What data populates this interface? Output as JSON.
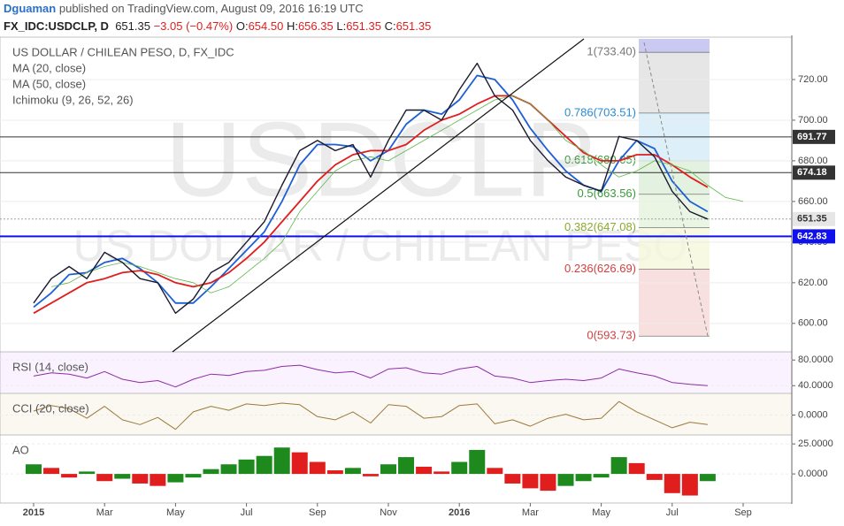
{
  "header": {
    "user": "Dguaman",
    "published": "published on TradingView.com, August 09, 2016 16:19 UTC",
    "symbol": "FX_IDC:USDCLP, D",
    "price": "651.35",
    "change": "−3.05 (−0.47%)",
    "ohlc": [
      {
        "label": "O:",
        "value": "654.50"
      },
      {
        "label": "H:",
        "value": "656.35"
      },
      {
        "label": "L:",
        "value": "651.35"
      },
      {
        "label": "C:",
        "value": "651.35"
      }
    ]
  },
  "chart_data": [
    {
      "type": "line",
      "title": "US DOLLAR / CHILEAN PESO, D, FX_IDC",
      "watermark": "USDCLP",
      "watermark_sub": "US DOLLAR / CHILEAN PESO",
      "categories": [
        "2015",
        null,
        null,
        null,
        "Mar",
        null,
        null,
        null,
        "May",
        null,
        null,
        null,
        "Jul",
        null,
        null,
        null,
        "Sep",
        null,
        null,
        null,
        "Nov",
        null,
        null,
        null,
        "2016",
        null,
        null,
        null,
        "Mar",
        null,
        null,
        null,
        "May",
        null,
        null,
        null,
        "Jul",
        null,
        null,
        null,
        "Sep",
        null
      ],
      "color": "#1a1a2e",
      "values": [
        610,
        622,
        628,
        622,
        635,
        630,
        622,
        620,
        605,
        612,
        625,
        630,
        640,
        650,
        668,
        685,
        690,
        685,
        688,
        672,
        690,
        705,
        705,
        700,
        715,
        728,
        712,
        705,
        690,
        680,
        672,
        668,
        665,
        692,
        690,
        682,
        665,
        655,
        651.35,
        null,
        null,
        null
      ],
      "series": [
        {
          "name": "MA (20, close)",
          "color": "#1c5fd6",
          "values": [
            608,
            615,
            624,
            625,
            630,
            632,
            627,
            620,
            610,
            610,
            618,
            627,
            636,
            645,
            660,
            678,
            688,
            688,
            687,
            680,
            685,
            698,
            705,
            703,
            710,
            722,
            720,
            710,
            696,
            685,
            675,
            668,
            665,
            680,
            690,
            686,
            670,
            660,
            655,
            null,
            null,
            null
          ]
        },
        {
          "name": "MA (50, close)",
          "color": "#e01e1e",
          "values": [
            605,
            610,
            615,
            620,
            622,
            625,
            626,
            624,
            620,
            618,
            620,
            625,
            632,
            640,
            650,
            660,
            670,
            678,
            683,
            685,
            685,
            688,
            695,
            700,
            703,
            708,
            712,
            712,
            708,
            700,
            692,
            684,
            680,
            680,
            683,
            683,
            678,
            672,
            667,
            null,
            null,
            null
          ]
        },
        {
          "name": "Ichimoku (9, 26, 52, 26)",
          "color": "#5fb84a",
          "values": [
            null,
            618,
            620,
            625,
            628,
            630,
            628,
            625,
            622,
            620,
            615,
            618,
            625,
            632,
            640,
            655,
            665,
            675,
            680,
            682,
            680,
            685,
            690,
            695,
            700,
            705,
            710,
            712,
            708,
            700,
            690,
            685,
            678,
            672,
            675,
            680,
            678,
            675,
            668,
            662,
            660,
            null
          ]
        }
      ],
      "ylim": [
        586,
        740
      ],
      "yticks": [
        {
          "value": 600,
          "label": "600.00"
        },
        {
          "value": 620,
          "label": "620.00"
        },
        {
          "value": 640,
          "label": "640.00"
        },
        {
          "value": 660,
          "label": "660.00"
        },
        {
          "value": 680,
          "label": "680.00"
        },
        {
          "value": 700,
          "label": "700.00"
        },
        {
          "value": 720,
          "label": "720.00"
        }
      ],
      "hlines": [
        {
          "value": 691.77,
          "color": "#333333"
        },
        {
          "value": 674.18,
          "color": "#333333"
        },
        {
          "value": 651.35,
          "color": "#9e9e9e"
        },
        {
          "value": 642.83,
          "color": "#1010ee"
        }
      ],
      "fib": [
        {
          "value": 733.4,
          "label": "1(733.40)",
          "color": "#e0e0e0"
        },
        {
          "value": 703.51,
          "label": "0.786(703.51)",
          "color": "#d4ebf7"
        },
        {
          "value": 680.05,
          "label": "0.618(680.05)",
          "color": "#dcefd8"
        },
        {
          "value": 663.56,
          "label": "0.5(663.56)",
          "color": "#e5f4dc"
        },
        {
          "value": 647.08,
          "label": "0.382(647.08)",
          "color": "#f5f7dc"
        },
        {
          "value": 626.69,
          "label": "0.236(626.69)",
          "color": "#f8d8d8"
        },
        {
          "value": 593.73,
          "label": "0(593.73)",
          "color": "#f8d8d8"
        }
      ]
    },
    {
      "type": "line",
      "title": "RSI (14, close)",
      "color": "#8e2ba6",
      "values": [
        55,
        60,
        58,
        52,
        62,
        50,
        45,
        48,
        38,
        50,
        58,
        56,
        62,
        64,
        70,
        72,
        65,
        60,
        62,
        52,
        66,
        68,
        60,
        58,
        66,
        70,
        55,
        52,
        45,
        48,
        50,
        48,
        52,
        66,
        60,
        55,
        45,
        42,
        40,
        null,
        null,
        null
      ],
      "ylim": [
        28,
        90
      ],
      "yticks": [
        {
          "value": 80,
          "label": "80.0000"
        },
        {
          "value": 40,
          "label": "40.0000"
        }
      ]
    },
    {
      "type": "line",
      "title": "CCI (20, close)",
      "color": "#9c7a3a",
      "values": [
        50,
        120,
        80,
        -40,
        110,
        -60,
        -120,
        -30,
        -180,
        40,
        110,
        60,
        140,
        120,
        150,
        130,
        -20,
        -60,
        40,
        -100,
        130,
        110,
        -40,
        -20,
        120,
        140,
        -110,
        -60,
        -140,
        -40,
        10,
        -60,
        -40,
        170,
        40,
        -60,
        -160,
        -90,
        -120,
        null,
        null,
        null
      ],
      "ylim": [
        -250,
        250
      ],
      "yticks": [
        {
          "value": 0,
          "label": "0.0000"
        }
      ]
    },
    {
      "type": "bar",
      "title": "AO",
      "up_color": "#1e8a1e",
      "down_color": "#e01e1e",
      "values": [
        8,
        5,
        -3,
        2,
        -6,
        -4,
        -8,
        -10,
        -7,
        -3,
        4,
        8,
        12,
        15,
        22,
        18,
        10,
        3,
        5,
        -2,
        8,
        14,
        6,
        2,
        10,
        20,
        5,
        -8,
        -12,
        -14,
        -10,
        -6,
        -3,
        14,
        9,
        -5,
        -16,
        -18,
        -6,
        null,
        null,
        null
      ],
      "ylim": [
        -23.5,
        31
      ],
      "yticks": [
        {
          "value": 25,
          "label": "25.0000"
        },
        {
          "value": 0,
          "label": "0.0000"
        }
      ]
    }
  ]
}
